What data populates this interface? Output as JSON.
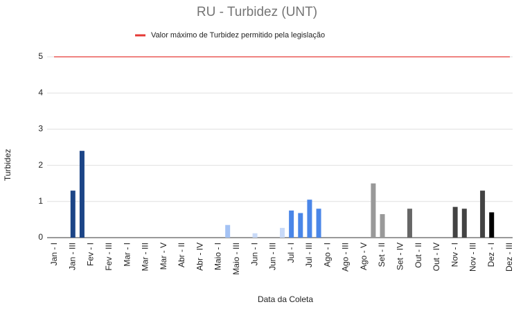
{
  "chart_data": {
    "type": "bar",
    "title": "RU - Turbidez (UNT)",
    "x_label": "Data da Coleta",
    "y_label": "Turbidez",
    "categories": [
      "Jan - I",
      null,
      "Jan - III",
      null,
      "Fev - I",
      null,
      "Fev - III",
      null,
      "Mar - I",
      null,
      "Mar - III",
      null,
      "Mar - V",
      null,
      "Abr - II",
      null,
      "Abr - IV",
      null,
      "Maio - I",
      null,
      "Maio - III",
      null,
      "Jun - I",
      null,
      "Jun - III",
      null,
      "Jul - I",
      null,
      "Jul - III",
      null,
      "Ago - I",
      null,
      "Ago - III",
      null,
      "Ago - V",
      null,
      "Set - II",
      null,
      "Set - IV",
      null,
      "Out - II",
      null,
      "Out - IV",
      null,
      "Nov - I",
      null,
      "Nov - III",
      null,
      "Dez - I",
      null,
      "Dez - III"
    ],
    "values": [
      null,
      null,
      1.3,
      2.4,
      null,
      null,
      null,
      null,
      null,
      null,
      null,
      null,
      null,
      null,
      null,
      null,
      null,
      null,
      null,
      0.35,
      null,
      null,
      0.12,
      null,
      null,
      0.27,
      0.75,
      0.68,
      1.05,
      0.8,
      null,
      null,
      null,
      null,
      null,
      1.5,
      0.65,
      null,
      null,
      0.8,
      null,
      null,
      null,
      null,
      0.85,
      0.8,
      null,
      1.3,
      0.7,
      null,
      null
    ],
    "colors": [
      null,
      null,
      "#1c4587",
      "#1c4587",
      null,
      null,
      null,
      null,
      null,
      null,
      null,
      null,
      null,
      null,
      null,
      null,
      null,
      null,
      null,
      "#a4c2f4",
      null,
      null,
      "#c9daf8",
      null,
      null,
      "#c9daf8",
      "#4a86e8",
      "#4a86e8",
      "#4a86e8",
      "#4a86e8",
      null,
      null,
      null,
      null,
      null,
      "#999999",
      "#999999",
      null,
      null,
      "#666666",
      null,
      null,
      null,
      null,
      "#434343",
      "#434343",
      null,
      "#434343",
      "#000000",
      null,
      null
    ],
    "threshold": {
      "name": "Valor máximo de Turbidez permitido pela legislação",
      "value": 5,
      "color": "#e53935"
    },
    "ylim": [
      0,
      5
    ],
    "yticks": [
      0,
      1,
      2,
      3,
      4,
      5
    ],
    "grid": true,
    "legend": "top"
  }
}
